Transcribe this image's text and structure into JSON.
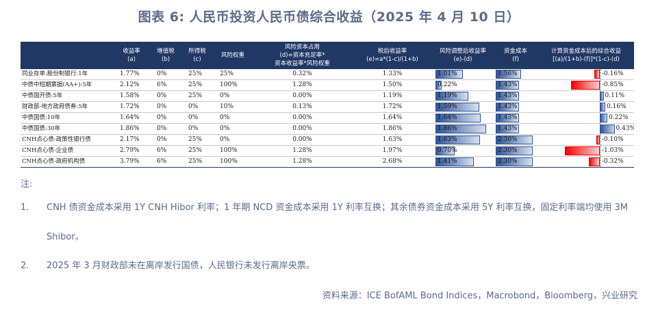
{
  "title": "图表 6:  人民币投资人民币债综合收益（2025 年 4 月 10 日）",
  "table": {
    "headers": [
      {
        "line1": "",
        "line2": ""
      },
      {
        "line1": "收益率",
        "line2": "(a)"
      },
      {
        "line1": "增值税",
        "line2": "(b)"
      },
      {
        "line1": "所得税",
        "line2": "(c)"
      },
      {
        "line1": "风险权重",
        "line2": ""
      },
      {
        "line1": "风险资本占用",
        "line2": "(d)=资本充足率*",
        "line3": "资本收益率*风险权重"
      },
      {
        "line1": "税后收益率",
        "line2": "(e)=a*(1-c)/(1+b)"
      },
      {
        "line1": "风险调整后收益率",
        "line2": "(e)-(d)"
      },
      {
        "line1": "资金成本",
        "line2": "(f)"
      },
      {
        "line1": "计算资金成本后的综合收益",
        "line2": "[(a)/(1+b)-(f)]*(1-c)-(d)"
      }
    ],
    "rows": [
      {
        "name": "同业存单:股份制银行:1年",
        "a": "1.77%",
        "b": "0%",
        "c": "25%",
        "w": "25%",
        "d": "0.32%",
        "e": "1.33%",
        "adj": "1.01%",
        "adj_v": 1.01,
        "f": "1.56%",
        "f_v": 1.56,
        "comp": "-0.16%",
        "comp_v": -0.16
      },
      {
        "name": "中债中短期票据(AA+):5年",
        "a": "2.12%",
        "b": "6%",
        "c": "25%",
        "w": "100%",
        "d": "1.28%",
        "e": "1.50%",
        "adj": "0.22%",
        "adj_v": 0.22,
        "f": "1.43%",
        "f_v": 1.43,
        "comp": "-0.85%",
        "comp_v": -0.85
      },
      {
        "name": "中债国开债:5年",
        "a": "1.58%",
        "b": "0%",
        "c": "25%",
        "w": "0%",
        "d": "0.00%",
        "e": "1.19%",
        "adj": "1.19%",
        "adj_v": 1.19,
        "f": "1.43%",
        "f_v": 1.43,
        "comp": "0.11%",
        "comp_v": 0.11
      },
      {
        "name": "财政部-地方政府债券:5年",
        "a": "1.72%",
        "b": "0%",
        "c": "0%",
        "w": "10%",
        "d": "0.13%",
        "e": "1.72%",
        "adj": "1.59%",
        "adj_v": 1.59,
        "f": "1.43%",
        "f_v": 1.43,
        "comp": "0.16%",
        "comp_v": 0.16
      },
      {
        "name": "中债国债:10年",
        "a": "1.64%",
        "b": "0%",
        "c": "0%",
        "w": "0%",
        "d": "0.00%",
        "e": "1.64%",
        "adj": "1.64%",
        "adj_v": 1.64,
        "f": "1.43%",
        "f_v": 1.43,
        "comp": "0.22%",
        "comp_v": 0.22
      },
      {
        "name": "中债国债:30年",
        "a": "1.86%",
        "b": "0%",
        "c": "0%",
        "w": "0%",
        "d": "0.00%",
        "e": "1.86%",
        "adj": "1.86%",
        "adj_v": 1.86,
        "f": "1.43%",
        "f_v": 1.43,
        "comp": "0.43%",
        "comp_v": 0.43
      },
      {
        "name": "CNH点心债-政策性银行债",
        "a": "2.17%",
        "b": "0%",
        "c": "25%",
        "w": "0%",
        "d": "0.00%",
        "e": "1.63%",
        "adj": "1.63%",
        "adj_v": 1.63,
        "f": "2.30%",
        "f_v": 2.3,
        "comp": "-0.10%",
        "comp_v": -0.1
      },
      {
        "name": "CNH点心债-企业债",
        "a": "2.79%",
        "b": "6%",
        "c": "25%",
        "w": "100%",
        "d": "1.28%",
        "e": "1.97%",
        "adj": "0.70%",
        "adj_v": 0.7,
        "f": "2.30%",
        "f_v": 2.3,
        "comp": "-1.03%",
        "comp_v": -1.03
      },
      {
        "name": "CNH点心债-政府机构债",
        "a": "3.79%",
        "b": "6%",
        "c": "25%",
        "w": "100%",
        "d": "1.28%",
        "e": "2.68%",
        "adj": "1.41%",
        "adj_v": 1.41,
        "f": "2.30%",
        "f_v": 2.3,
        "comp": "-0.32%",
        "comp_v": -0.32
      }
    ]
  },
  "notes": {
    "heading": "注:",
    "items": [
      {
        "index": "1.",
        "text": "CNH 债资金成本采用 1Y CNH Hibor 利率；1 年期 NCD 资金成本采用 1Y 利率互换；其余债券资金成本采用 5Y 利率互换，固定利率端均使用 3M Shibor。"
      },
      {
        "index": "2.",
        "text": "2025 年 3 月财政部未在离岸发行国债，人民银行未发行离岸央票。"
      }
    ]
  },
  "source": "资料来源：ICE BofAML Bond Indices，Macrobond，Bloomberg，兴业研究",
  "colors": {
    "header_bg": "#1f3864",
    "bar_blue": "#2e5597",
    "bar_red": "#ff0000",
    "text_muted": "#5b6b8a"
  }
}
